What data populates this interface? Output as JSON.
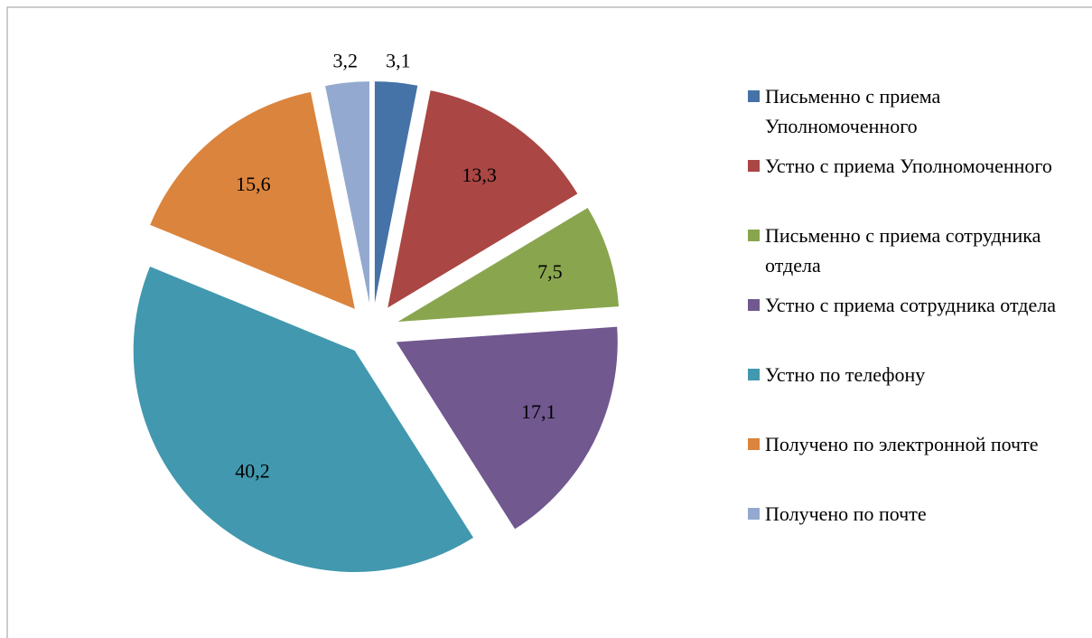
{
  "chart_data": {
    "type": "pie",
    "categories": [
      "Письменно с приема Уполномоченного",
      "Устно с приема Уполномоченного",
      "Письменно с приема сотрудника отдела",
      "Устно с приема сотрудника отдела",
      "Устно по телефону",
      "Получено по электронной почте",
      "Получено по почте"
    ],
    "values": [
      3.1,
      13.3,
      7.5,
      17.1,
      40.2,
      15.6,
      3.2
    ],
    "value_labels": [
      "3,1",
      "13,3",
      "7,5",
      "17,1",
      "40,2",
      "15,6",
      "3,2"
    ],
    "colors": [
      "#4572a7",
      "#aa4643",
      "#89a54e",
      "#71588f",
      "#4198af",
      "#db843d",
      "#93a9cf"
    ],
    "exploded": true,
    "legend": "right"
  }
}
